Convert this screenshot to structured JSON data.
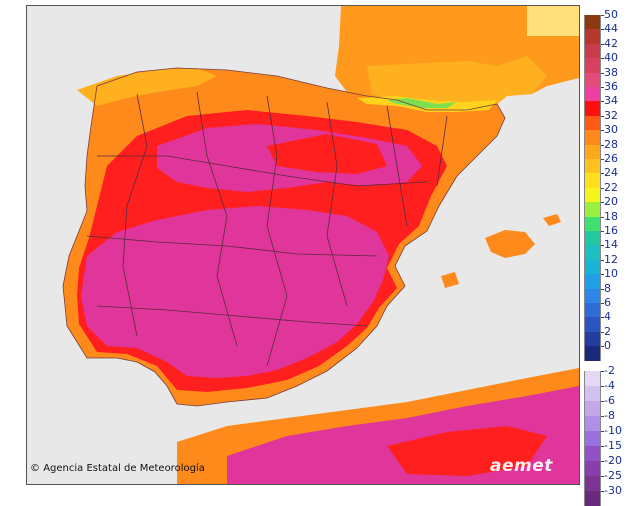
{
  "map": {
    "attribution": "Agencia Estatal de Meteorología",
    "brand": "aemet",
    "background_sea": "#e8e8e8"
  },
  "legend": {
    "positive": [
      {
        "label": "50",
        "color": "#8b3a0f"
      },
      {
        "label": "44",
        "color": "#b5372e"
      },
      {
        "label": "42",
        "color": "#c83b4a"
      },
      {
        "label": "40",
        "color": "#d8405e"
      },
      {
        "label": "38",
        "color": "#e24b7a"
      },
      {
        "label": "36",
        "color": "#ef3fa0"
      },
      {
        "label": "34",
        "color": "#ff1010"
      },
      {
        "label": "32",
        "color": "#ff5a14"
      },
      {
        "label": "30",
        "color": "#ff8a1c"
      },
      {
        "label": "28",
        "color": "#ffa81e"
      },
      {
        "label": "26",
        "color": "#ffc21e"
      },
      {
        "label": "24",
        "color": "#ffe01c"
      },
      {
        "label": "22",
        "color": "#f5f51c"
      },
      {
        "label": "20",
        "color": "#9af040"
      },
      {
        "label": "18",
        "color": "#3ee070"
      },
      {
        "label": "16",
        "color": "#22c8a0"
      },
      {
        "label": "14",
        "color": "#1cc0c0"
      },
      {
        "label": "12",
        "color": "#1ab4d8"
      },
      {
        "label": "10",
        "color": "#1fa0e8"
      },
      {
        "label": "8",
        "color": "#2d86e8"
      },
      {
        "label": "6",
        "color": "#2f6cd8"
      },
      {
        "label": "4",
        "color": "#2a54c0"
      },
      {
        "label": "2",
        "color": "#213ea0"
      },
      {
        "label": "0",
        "color": "#1a2a7a"
      }
    ],
    "negative": [
      {
        "label": "-2",
        "color": "#e4d8f4"
      },
      {
        "label": "-4",
        "color": "#d2c0ee"
      },
      {
        "label": "-6",
        "color": "#c0a8ea"
      },
      {
        "label": "-8",
        "color": "#ae90e6"
      },
      {
        "label": "-10",
        "color": "#9a70e0"
      },
      {
        "label": "-15",
        "color": "#9050c8"
      },
      {
        "label": "-20",
        "color": "#8a3eae"
      },
      {
        "label": "-25",
        "color": "#7c3494"
      },
      {
        "label": "-30",
        "color": "#6a2a7c"
      }
    ]
  },
  "colors": {
    "hot": "#e0359a",
    "red": "#ff1f1f",
    "orange": "#ff8a1c",
    "amber": "#ffa81e",
    "yellow": "#ffd21c",
    "green": "#7ee050",
    "border": "#5a2a3a"
  }
}
